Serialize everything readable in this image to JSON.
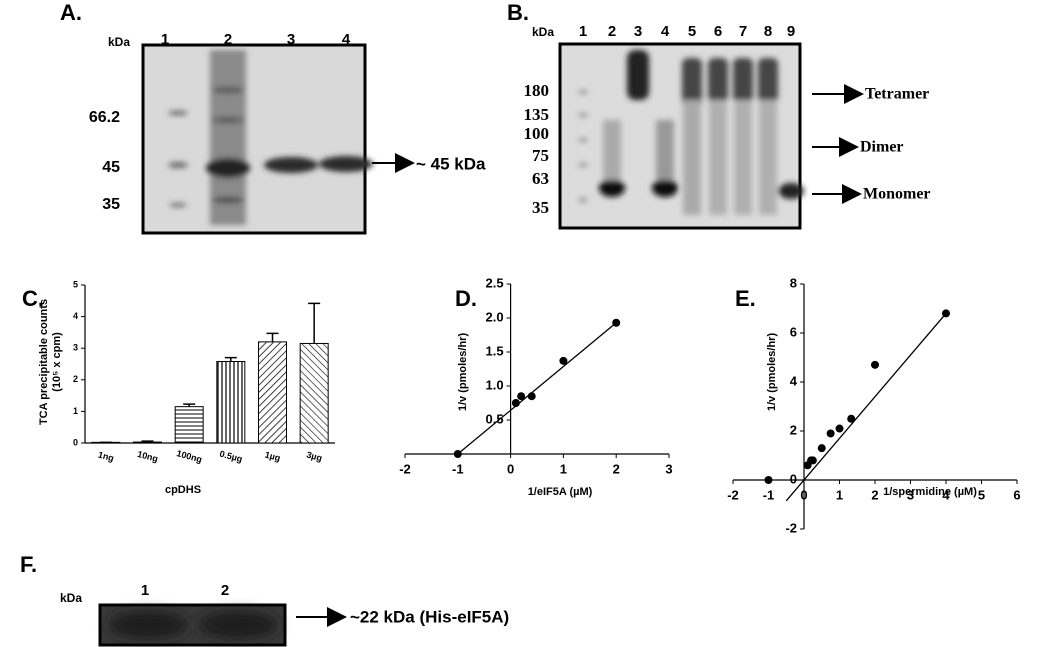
{
  "gel_a": {
    "label": "A.",
    "unit": "kDa",
    "lanes": [
      "1",
      "2",
      "3",
      "4"
    ],
    "markers": [
      "66.2",
      "45",
      "35"
    ],
    "annotation": "~ 45 kDa"
  },
  "gel_b": {
    "label": "B.",
    "unit": "kDa",
    "lanes": [
      "1",
      "2",
      "3",
      "4",
      "5",
      "6",
      "7",
      "8",
      "9"
    ],
    "markers": [
      "180",
      "135",
      "100",
      "75",
      "63",
      "35"
    ],
    "annotations": [
      "Tetramer",
      "Dimer",
      "Monomer"
    ]
  },
  "chart_data": [
    {
      "panel": "C.",
      "type": "bar",
      "ylabel": [
        "TCA precipitable counts",
        "(10⁵ x cpm)"
      ],
      "xlabel": "cpDHS",
      "categories": [
        "1ng",
        "10ng",
        "100ng",
        "0.5µg",
        "1µg",
        "3µg"
      ],
      "values": [
        0.02,
        0.03,
        1.15,
        2.58,
        3.2,
        3.15
      ],
      "errors": [
        0,
        0.03,
        0.08,
        0.12,
        0.27,
        1.27
      ],
      "ylim": [
        0,
        5
      ],
      "yticks": [
        0,
        1,
        2,
        3,
        4,
        5
      ]
    },
    {
      "panel": "D.",
      "type": "scatter",
      "ylabel": "1/v (pmoles/hr)",
      "xlabel": "1/eIF5A (µM)",
      "x": [
        -1,
        0.1,
        0.2,
        0.4,
        1,
        2
      ],
      "values": [
        0,
        0.75,
        0.85,
        0.85,
        1.37,
        1.93
      ],
      "line": {
        "x": [
          -1,
          2
        ],
        "y": [
          0,
          1.93
        ]
      },
      "xlim": [
        -2,
        3
      ],
      "ylim": [
        0,
        2.5
      ],
      "xticks": [
        -2,
        -1,
        0,
        1,
        2,
        3
      ],
      "yticks": [
        0.5,
        {
          "value": 1,
          "label": "1.0"
        },
        1.5,
        {
          "value": 2,
          "label": "2.0"
        },
        2.5
      ]
    },
    {
      "panel": "E.",
      "type": "scatter",
      "ylabel": "1/v (pmoles/hr)",
      "xlabel": "1/spermidine (µM)",
      "x": [
        -1,
        0.1,
        0.2,
        0.25,
        0.5,
        0.75,
        1,
        1.33,
        2,
        4
      ],
      "values": [
        0,
        0.6,
        0.8,
        0.8,
        1.3,
        1.9,
        2.1,
        2.5,
        4.7,
        6.8
      ],
      "line": {
        "x": [
          -0.5,
          4
        ],
        "y": [
          -0.85,
          6.8
        ]
      },
      "xlim": [
        -2,
        6
      ],
      "ylim": [
        -2,
        8
      ],
      "xticks": [
        -2,
        -1,
        0,
        1,
        2,
        3,
        4,
        5,
        6
      ],
      "yticks": [
        -2,
        0,
        2,
        4,
        6,
        8
      ]
    }
  ],
  "gel_f": {
    "label": "F.",
    "unit": "kDa",
    "lanes": [
      "1",
      "2"
    ],
    "annotation": "~22 kDa (His-eIF5A)"
  }
}
